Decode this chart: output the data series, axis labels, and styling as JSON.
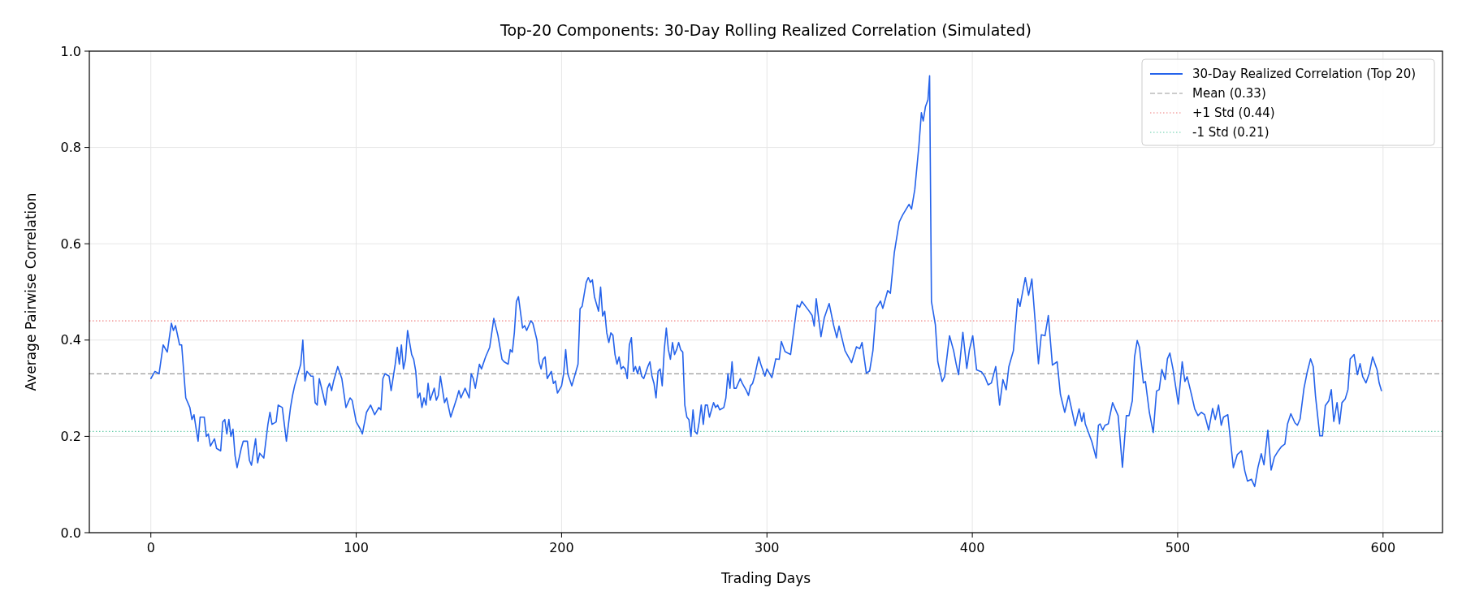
{
  "chart_data": {
    "type": "line",
    "title": "Top-20 Components: 30-Day Rolling Realized Correlation (Simulated)",
    "xlabel": "Trading Days",
    "ylabel": "Average Pairwise Correlation",
    "xlim": [
      -29.95,
      628.95
    ],
    "ylim": [
      0,
      1
    ],
    "xticks": [
      0,
      100,
      200,
      300,
      400,
      500,
      600
    ],
    "yticks": [
      {
        "value": 0,
        "label": "0.0"
      },
      {
        "value": 0.2,
        "label": "0.2"
      },
      {
        "value": 0.4,
        "label": "0.4"
      },
      {
        "value": 0.6,
        "label": "0.6"
      },
      {
        "value": 0.8,
        "label": "0.8"
      },
      {
        "value": 1,
        "label": "1.0"
      }
    ],
    "grid": true,
    "legend": "top right",
    "marker": "none",
    "line_style": "solid",
    "series": [
      {
        "name": "30-Day Realized Correlation (Top 20)",
        "color": "#2563eb",
        "x": [
          0,
          2,
          4,
          6,
          8,
          10,
          11,
          12,
          14,
          15,
          17,
          19,
          20,
          21,
          23,
          24,
          26,
          27,
          28,
          29,
          31,
          32,
          34,
          35,
          36,
          37,
          38,
          39,
          40,
          41,
          42,
          44,
          45,
          47,
          48,
          49,
          51,
          52,
          53,
          55,
          57,
          58,
          59,
          61,
          62,
          64,
          66,
          68,
          69,
          70,
          72,
          73,
          74,
          75,
          76,
          78,
          79,
          80,
          81,
          82,
          84,
          85,
          86,
          87,
          88,
          89,
          91,
          93,
          95,
          97,
          98,
          100,
          102,
          103,
          105,
          107,
          109,
          111,
          112,
          113,
          114,
          116,
          117,
          119,
          120,
          121,
          122,
          123,
          124,
          125,
          127,
          128,
          129,
          130,
          131,
          132,
          133,
          134,
          135,
          136,
          138,
          139,
          140,
          141,
          143,
          144,
          146,
          149,
          150,
          151,
          152,
          153,
          155,
          156,
          157,
          158,
          160,
          161,
          163,
          165,
          167,
          169,
          171,
          172,
          174,
          175,
          176,
          177,
          178,
          179,
          181,
          182,
          183,
          185,
          186,
          188,
          189,
          190,
          191,
          192,
          193,
          195,
          196,
          197,
          198,
          200,
          201,
          202,
          203,
          205,
          208,
          209,
          210,
          212,
          213,
          214,
          215,
          216,
          218,
          219,
          220,
          221,
          222,
          223,
          224,
          225,
          226,
          227,
          228,
          229,
          230,
          231,
          232,
          233,
          234,
          235,
          236,
          237,
          238,
          239,
          240,
          242,
          243,
          244,
          245,
          246,
          247,
          248,
          249,
          250,
          251,
          252,
          253,
          254,
          255,
          256,
          257,
          258,
          259,
          260,
          261,
          262,
          263,
          264,
          265,
          266,
          267,
          268,
          269,
          270,
          271,
          272,
          273,
          274,
          275,
          276,
          277,
          279,
          280,
          281,
          282,
          283,
          284,
          285,
          287,
          288,
          290,
          291,
          292,
          293,
          294,
          296,
          297,
          299,
          300,
          302.4,
          304.3,
          306,
          307,
          308.8,
          311.5,
          314.7,
          315.9,
          317,
          320.4,
          322,
          323,
          324,
          326.3,
          327.9,
          330.3,
          332.4,
          334,
          335.1,
          338,
          341.2,
          343.6,
          345.2,
          346.3,
          348.4,
          350,
          351.6,
          353.2,
          355.3,
          356.4,
          358.8,
          360.1,
          362,
          364.4,
          366,
          369.2,
          370.4,
          372,
          374,
          375.2,
          376.1,
          377.2,
          378.4,
          379.2,
          380.1,
          382,
          383.2,
          385.3,
          386.5,
          388.9,
          390.9,
          392.1,
          393.3,
          395.4,
          397.3,
          398.6,
          400.2,
          402.1,
          404.5,
          406.1,
          407.7,
          409.3,
          411.4,
          413.3,
          414.9,
          416.5,
          417.8,
          420,
          422.1,
          423.2,
          425.8,
          427.4,
          429,
          432.2,
          433.6,
          435.4,
          437,
          439,
          441.3,
          442.9,
          445,
          446.9,
          450.1,
          452,
          453.3,
          454.3,
          455,
          458.2,
          460.3,
          461.4,
          462.2,
          463.5,
          464.6,
          466.2,
          468.3,
          471,
          473.1,
          475,
          476.3,
          477.9,
          479,
          480.3,
          481.4,
          483.3,
          484.3,
          486.2,
          488.1,
          489.7,
          491,
          492.3,
          493.9,
          495,
          496.2,
          497.8,
          500.3,
          502.2,
          503.5,
          504.6,
          506.7,
          508.3,
          509.9,
          511.5,
          513.1,
          515.1,
          517,
          518.3,
          519.9,
          521.2,
          522.3,
          524.4,
          527.1,
          529,
          531.1,
          532.7,
          534,
          535.9,
          537.5,
          539.1,
          540.7,
          542,
          543.9,
          545.5,
          547.1,
          549,
          550.6,
          552.2,
          553.5,
          555.1,
          557.1,
          558.3,
          559.6,
          561.5,
          563.1,
          564.7,
          566,
          567.1,
          569.2,
          570.5,
          571.9,
          573.6,
          574.8,
          576,
          577.6,
          578.8,
          580,
          581.6,
          582.9,
          584,
          585.9,
          587.5,
          588.8,
          590.1,
          591.7,
          593.3,
          594.9,
          597.1,
          598.1,
          599.2
        ],
        "values": [
          0.32,
          0.335,
          0.33,
          0.39,
          0.375,
          0.435,
          0.42,
          0.43,
          0.39,
          0.39,
          0.28,
          0.26,
          0.235,
          0.245,
          0.19,
          0.24,
          0.24,
          0.2,
          0.205,
          0.18,
          0.195,
          0.175,
          0.17,
          0.23,
          0.235,
          0.205,
          0.235,
          0.2,
          0.215,
          0.16,
          0.135,
          0.175,
          0.19,
          0.19,
          0.15,
          0.14,
          0.195,
          0.145,
          0.165,
          0.155,
          0.225,
          0.25,
          0.225,
          0.23,
          0.265,
          0.26,
          0.19,
          0.26,
          0.285,
          0.305,
          0.335,
          0.35,
          0.4,
          0.315,
          0.335,
          0.325,
          0.325,
          0.27,
          0.265,
          0.32,
          0.285,
          0.265,
          0.3,
          0.31,
          0.295,
          0.315,
          0.345,
          0.32,
          0.26,
          0.28,
          0.275,
          0.23,
          0.215,
          0.205,
          0.25,
          0.265,
          0.245,
          0.26,
          0.255,
          0.32,
          0.33,
          0.325,
          0.295,
          0.35,
          0.385,
          0.35,
          0.39,
          0.34,
          0.36,
          0.42,
          0.37,
          0.36,
          0.335,
          0.28,
          0.29,
          0.26,
          0.28,
          0.265,
          0.31,
          0.275,
          0.3,
          0.275,
          0.285,
          0.325,
          0.27,
          0.28,
          0.24,
          0.28,
          0.295,
          0.28,
          0.29,
          0.3,
          0.28,
          0.33,
          0.32,
          0.3,
          0.35,
          0.34,
          0.365,
          0.385,
          0.445,
          0.41,
          0.36,
          0.355,
          0.35,
          0.38,
          0.375,
          0.415,
          0.48,
          0.49,
          0.425,
          0.43,
          0.42,
          0.44,
          0.435,
          0.4,
          0.355,
          0.34,
          0.36,
          0.365,
          0.32,
          0.335,
          0.31,
          0.315,
          0.29,
          0.305,
          0.33,
          0.38,
          0.33,
          0.305,
          0.35,
          0.465,
          0.47,
          0.52,
          0.53,
          0.52,
          0.525,
          0.49,
          0.46,
          0.51,
          0.45,
          0.46,
          0.415,
          0.395,
          0.415,
          0.41,
          0.37,
          0.35,
          0.365,
          0.34,
          0.345,
          0.34,
          0.32,
          0.39,
          0.405,
          0.335,
          0.345,
          0.33,
          0.345,
          0.325,
          0.32,
          0.345,
          0.355,
          0.325,
          0.31,
          0.28,
          0.335,
          0.34,
          0.305,
          0.38,
          0.425,
          0.38,
          0.36,
          0.395,
          0.37,
          0.38,
          0.395,
          0.38,
          0.375,
          0.265,
          0.24,
          0.235,
          0.2,
          0.255,
          0.21,
          0.205,
          0.23,
          0.265,
          0.225,
          0.265,
          0.265,
          0.24,
          0.255,
          0.27,
          0.26,
          0.265,
          0.255,
          0.26,
          0.28,
          0.33,
          0.3,
          0.355,
          0.3,
          0.3,
          0.32,
          0.31,
          0.295,
          0.285,
          0.305,
          0.31,
          0.325,
          0.365,
          0.35,
          0.325,
          0.34,
          0.322,
          0.361,
          0.36,
          0.397,
          0.376,
          0.37,
          0.473,
          0.468,
          0.48,
          0.461,
          0.451,
          0.429,
          0.486,
          0.407,
          0.446,
          0.476,
          0.432,
          0.405,
          0.429,
          0.378,
          0.353,
          0.386,
          0.382,
          0.395,
          0.331,
          0.336,
          0.378,
          0.466,
          0.481,
          0.466,
          0.503,
          0.497,
          0.581,
          0.645,
          0.659,
          0.682,
          0.672,
          0.713,
          0.804,
          0.872,
          0.855,
          0.885,
          0.899,
          0.949,
          0.48,
          0.432,
          0.355,
          0.314,
          0.324,
          0.409,
          0.378,
          0.351,
          0.328,
          0.416,
          0.341,
          0.38,
          0.409,
          0.338,
          0.334,
          0.324,
          0.307,
          0.311,
          0.345,
          0.265,
          0.318,
          0.297,
          0.345,
          0.378,
          0.486,
          0.47,
          0.53,
          0.493,
          0.527,
          0.351,
          0.411,
          0.409,
          0.451,
          0.348,
          0.355,
          0.287,
          0.25,
          0.285,
          0.222,
          0.257,
          0.231,
          0.249,
          0.226,
          0.189,
          0.155,
          0.223,
          0.226,
          0.213,
          0.223,
          0.226,
          0.27,
          0.243,
          0.136,
          0.243,
          0.243,
          0.274,
          0.365,
          0.399,
          0.385,
          0.311,
          0.314,
          0.25,
          0.208,
          0.294,
          0.297,
          0.339,
          0.318,
          0.361,
          0.373,
          0.338,
          0.267,
          0.355,
          0.314,
          0.324,
          0.287,
          0.257,
          0.243,
          0.25,
          0.245,
          0.213,
          0.258,
          0.235,
          0.265,
          0.223,
          0.24,
          0.245,
          0.135,
          0.162,
          0.17,
          0.128,
          0.107,
          0.111,
          0.096,
          0.136,
          0.164,
          0.141,
          0.213,
          0.13,
          0.157,
          0.17,
          0.179,
          0.184,
          0.226,
          0.247,
          0.228,
          0.223,
          0.236,
          0.3,
          0.334,
          0.361,
          0.345,
          0.284,
          0.201,
          0.201,
          0.264,
          0.274,
          0.297,
          0.231,
          0.27,
          0.226,
          0.27,
          0.278,
          0.297,
          0.361,
          0.37,
          0.328,
          0.351,
          0.324,
          0.311,
          0.331,
          0.365,
          0.338,
          0.311,
          0.295
        ]
      }
    ],
    "ref_lines": [
      {
        "axis": "y",
        "value": 0.33,
        "label": "Mean (0.33)",
        "color": "#999999",
        "line_style": "dashed"
      },
      {
        "axis": "y",
        "value": 0.44,
        "label": "+1 Std (0.44)",
        "color": "#f08080",
        "line_style": "dotted"
      },
      {
        "axis": "y",
        "value": 0.21,
        "label": "-1 Std (0.21)",
        "color": "#66cdaa",
        "line_style": "dotted"
      }
    ]
  }
}
